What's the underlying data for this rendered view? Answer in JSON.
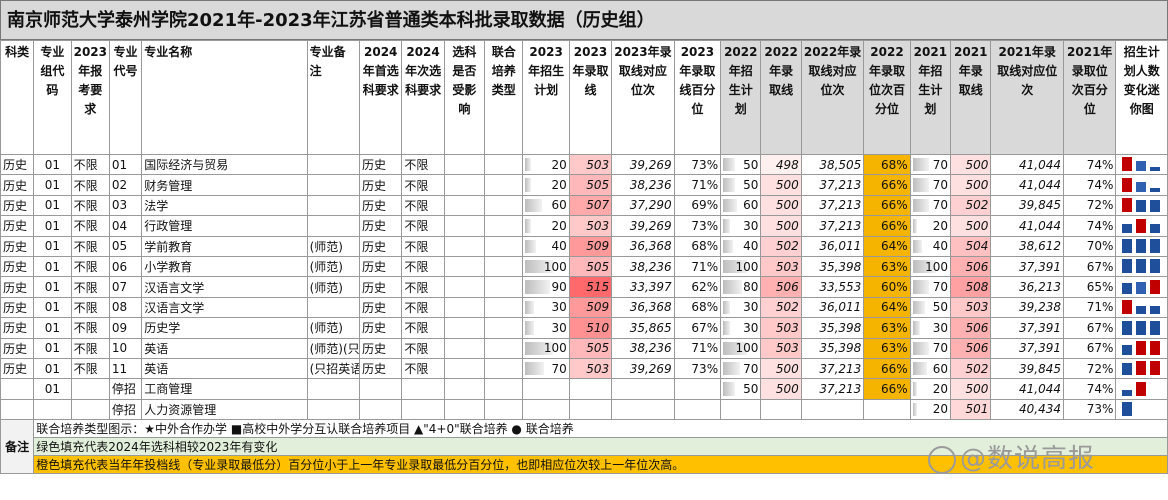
{
  "title": "南京师范大学泰州学院2021年-2023年江苏省普通类本科批录取数据（历史组）",
  "headers": [
    "科类",
    "专业组代码",
    "2023年报考要求",
    "专业代号",
    "专业名称",
    "专业备注",
    "2024年首选科要求",
    "2024年次选科要求",
    "选科是否受影响",
    "联合培养类型",
    "2023年招生计划",
    "2023年录取线",
    "2023年录取线对应位次",
    "2023年录取线百分位",
    "2022年招生计划",
    "2022年录取线",
    "2022年录取线对应位次",
    "2022年录取位次百分位",
    "2021年招生计划",
    "2021年录取线",
    "2021年录取线对应位次",
    "2021年录取位次百分位",
    "招生计划人数变化迷你图"
  ],
  "rows": [
    {
      "ke": "历史",
      "group": "01",
      "req": "不限",
      "code": "01",
      "name": "国际经济与贸易",
      "note": "",
      "first": "历史",
      "second": "不限",
      "p23": "20",
      "s23": "503",
      "r23": "39,269",
      "pc23": "73%",
      "p22": "50",
      "s22": "498",
      "r22": "38,505",
      "pc22": "68%",
      "p21": "70",
      "s21": "500",
      "r21": "41,044",
      "pc21": "74%"
    },
    {
      "ke": "历史",
      "group": "01",
      "req": "不限",
      "code": "02",
      "name": "财务管理",
      "note": "",
      "first": "历史",
      "second": "不限",
      "p23": "20",
      "s23": "505",
      "r23": "38,236",
      "pc23": "71%",
      "p22": "50",
      "s22": "500",
      "r22": "37,213",
      "pc22": "66%",
      "p21": "70",
      "s21": "500",
      "r21": "41,044",
      "pc21": "74%"
    },
    {
      "ke": "历史",
      "group": "01",
      "req": "不限",
      "code": "03",
      "name": "法学",
      "note": "",
      "first": "历史",
      "second": "不限",
      "p23": "60",
      "s23": "507",
      "r23": "37,290",
      "pc23": "69%",
      "p22": "60",
      "s22": "500",
      "r22": "37,213",
      "pc22": "66%",
      "p21": "70",
      "s21": "502",
      "r21": "39,845",
      "pc21": "72%"
    },
    {
      "ke": "历史",
      "group": "01",
      "req": "不限",
      "code": "04",
      "name": "行政管理",
      "note": "",
      "first": "历史",
      "second": "不限",
      "p23": "20",
      "s23": "503",
      "r23": "39,269",
      "pc23": "73%",
      "p22": "30",
      "s22": "500",
      "r22": "37,213",
      "pc22": "66%",
      "p21": "20",
      "s21": "500",
      "r21": "41,044",
      "pc21": "74%"
    },
    {
      "ke": "历史",
      "group": "01",
      "req": "不限",
      "code": "05",
      "name": "学前教育",
      "note": "(师范)",
      "first": "历史",
      "second": "不限",
      "p23": "40",
      "s23": "509",
      "r23": "36,368",
      "pc23": "68%",
      "p22": "40",
      "s22": "502",
      "r22": "36,011",
      "pc22": "64%",
      "p21": "40",
      "s21": "504",
      "r21": "38,612",
      "pc21": "70%"
    },
    {
      "ke": "历史",
      "group": "01",
      "req": "不限",
      "code": "06",
      "name": "小学教育",
      "note": "(师范)",
      "first": "历史",
      "second": "不限",
      "p23": "100",
      "s23": "505",
      "r23": "38,236",
      "pc23": "71%",
      "p22": "100",
      "s22": "503",
      "r22": "35,398",
      "pc22": "63%",
      "p21": "100",
      "s21": "506",
      "r21": "37,391",
      "pc21": "67%"
    },
    {
      "ke": "历史",
      "group": "01",
      "req": "不限",
      "code": "07",
      "name": "汉语言文学",
      "note": "(师范)",
      "first": "历史",
      "second": "不限",
      "p23": "90",
      "s23": "515",
      "r23": "33,397",
      "pc23": "62%",
      "p22": "80",
      "s22": "506",
      "r22": "33,553",
      "pc22": "60%",
      "p21": "70",
      "s21": "508",
      "r21": "36,213",
      "pc21": "65%"
    },
    {
      "ke": "历史",
      "group": "01",
      "req": "不限",
      "code": "08",
      "name": "汉语言文学",
      "note": "",
      "first": "历史",
      "second": "不限",
      "p23": "30",
      "s23": "509",
      "r23": "36,368",
      "pc23": "68%",
      "p22": "30",
      "s22": "502",
      "r22": "36,011",
      "pc22": "64%",
      "p21": "50",
      "s21": "503",
      "r21": "39,238",
      "pc21": "71%"
    },
    {
      "ke": "历史",
      "group": "01",
      "req": "不限",
      "code": "09",
      "name": "历史学",
      "note": "(师范)",
      "first": "历史",
      "second": "不限",
      "p23": "30",
      "s23": "510",
      "r23": "35,865",
      "pc23": "67%",
      "p22": "30",
      "s22": "503",
      "r22": "35,398",
      "pc22": "63%",
      "p21": "30",
      "s21": "506",
      "r21": "37,391",
      "pc21": "67%"
    },
    {
      "ke": "历史",
      "group": "01",
      "req": "不限",
      "code": "10",
      "name": "英语",
      "note": "(师范)(只",
      "first": "历史",
      "second": "不限",
      "p23": "100",
      "s23": "505",
      "r23": "38,236",
      "pc23": "71%",
      "p22": "100",
      "s22": "503",
      "r22": "35,398",
      "pc22": "63%",
      "p21": "70",
      "s21": "506",
      "r21": "37,391",
      "pc21": "67%"
    },
    {
      "ke": "历史",
      "group": "01",
      "req": "不限",
      "code": "11",
      "name": "英语",
      "note": "(只招英语",
      "first": "历史",
      "second": "不限",
      "p23": "70",
      "s23": "503",
      "r23": "39,269",
      "pc23": "73%",
      "p22": "70",
      "s22": "500",
      "r22": "37,213",
      "pc22": "66%",
      "p21": "60",
      "s21": "502",
      "r21": "39,845",
      "pc21": "72%"
    },
    {
      "ke": "",
      "group": "01",
      "req": "",
      "code": "停招",
      "name": "工商管理",
      "note": "",
      "first": "",
      "second": "",
      "p23": "",
      "s23": "",
      "r23": "",
      "pc23": "",
      "p22": "50",
      "s22": "500",
      "r22": "37,213",
      "pc22": "66%",
      "p21": "20",
      "s21": "500",
      "r21": "41,044",
      "pc21": "74%"
    },
    {
      "ke": "",
      "group": "",
      "req": "",
      "code": "停招",
      "name": "人力资源管理",
      "note": "",
      "first": "",
      "second": "",
      "p23": "",
      "s23": "",
      "r23": "",
      "pc23": "",
      "p22": "",
      "s22": "",
      "r22": "",
      "pc22": "",
      "p21": "20",
      "s21": "501",
      "r21": "40,434",
      "pc21": "73%"
    }
  ],
  "remarks": {
    "label": "备注",
    "line1": "联合培养类型图示：★中外合作办学  ■高校中外学分互认联合培养项目 ▲\"4+0\"联合培养 ● 联合培养",
    "line2": "绿色填充代表2024年选科相较2023年有变化",
    "line3": "橙色填充代表当年年投档线（专业录取最低分）百分位小于上一年专业录取最低分百分位，也即相应位次较上一年位次高。"
  },
  "watermark": "@数说高报",
  "colors": {
    "orange": "#f5b400",
    "green": "#e2efda",
    "header_gray": "#d9d9d9",
    "score_red": "#f8696b"
  }
}
